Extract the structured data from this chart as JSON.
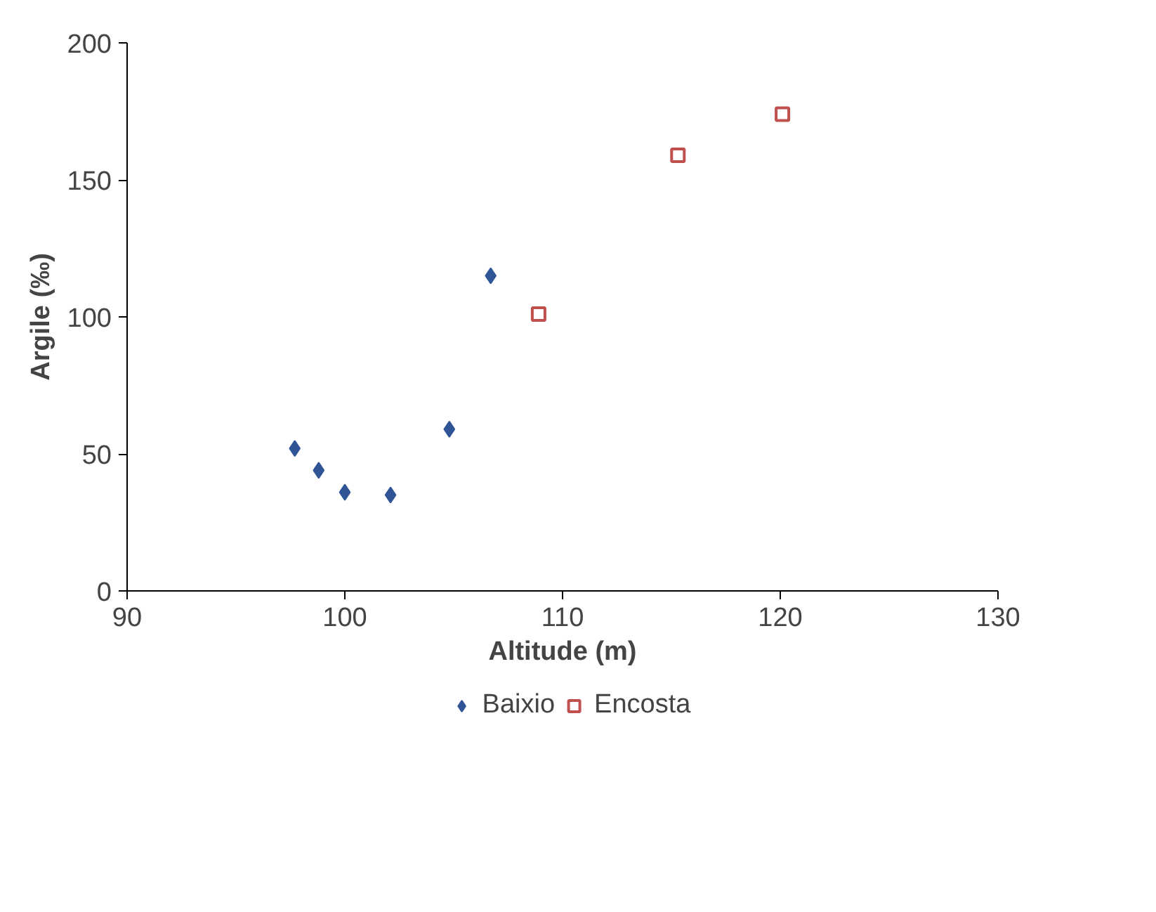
{
  "chart_data": {
    "type": "scatter",
    "xlabel": "Altitude (m)",
    "ylabel": "Argile (‰)",
    "xlim": [
      90,
      130
    ],
    "xticks": [
      90,
      100,
      110,
      120,
      130
    ],
    "ylim": [
      0,
      200
    ],
    "yticks": [
      0,
      50,
      100,
      150,
      200
    ],
    "grid": false,
    "legend": "bottom",
    "series": [
      {
        "name": "Baixio",
        "color": "#2f5597",
        "marker": "diamond",
        "x": [
          97.7,
          98.8,
          100.0,
          102.1,
          104.8,
          106.7
        ],
        "values": [
          52,
          44,
          36,
          35,
          59,
          115
        ]
      },
      {
        "name": "Encosta",
        "color": "#c0504d",
        "marker": "square",
        "x": [
          108.9,
          115.3,
          120.1
        ],
        "values": [
          101,
          159,
          174
        ]
      }
    ]
  }
}
